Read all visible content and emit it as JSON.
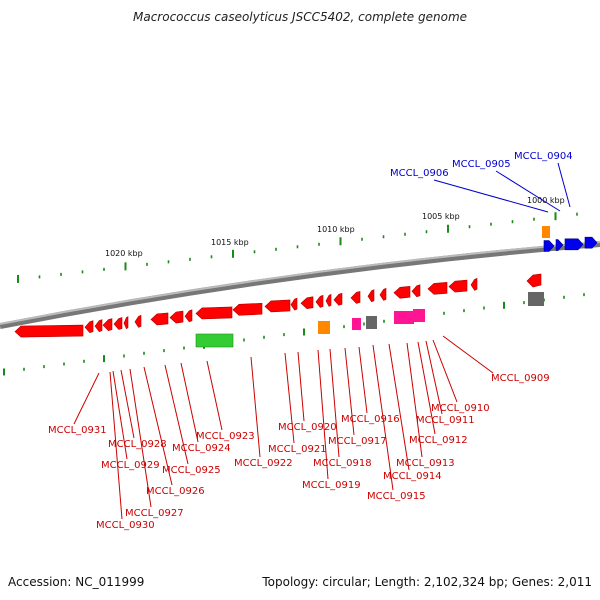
{
  "title": "Macrococcus caseolyticus JSCC5402, complete genome",
  "footer": {
    "accession": "Accession: NC_011999",
    "topology": "Topology: circular; Length: 2,102,324 bp; Genes: 2,011"
  },
  "scale_labels": [
    "1020 kbp",
    "1015 kbp",
    "1010 kbp",
    "1005 kbp",
    "1000 kbp"
  ],
  "genes": [
    "MCCL_0904",
    "MCCL_0905",
    "MCCL_0906",
    "MCCL_0909",
    "MCCL_0910",
    "MCCL_0911",
    "MCCL_0912",
    "MCCL_0913",
    "MCCL_0914",
    "MCCL_0915",
    "MCCL_0916",
    "MCCL_0917",
    "MCCL_0918",
    "MCCL_0919",
    "MCCL_0920",
    "MCCL_0921",
    "MCCL_0922",
    "MCCL_0923",
    "MCCL_0924",
    "MCCL_0925",
    "MCCL_0926",
    "MCCL_0927",
    "MCCL_0928",
    "MCCL_0929",
    "MCCL_0930",
    "MCCL_0931"
  ],
  "colors": {
    "reverse_gene": "#ff0000",
    "forward_gene": "#0000ee",
    "reverse_label": "#cc0000",
    "forward_label": "#0000cc",
    "backbone": "#888888",
    "tick": "#1a8a1a",
    "rna_green": "#33cc33",
    "orange": "#ff8800",
    "gray": "#666666",
    "magenta": "#ff1493"
  }
}
